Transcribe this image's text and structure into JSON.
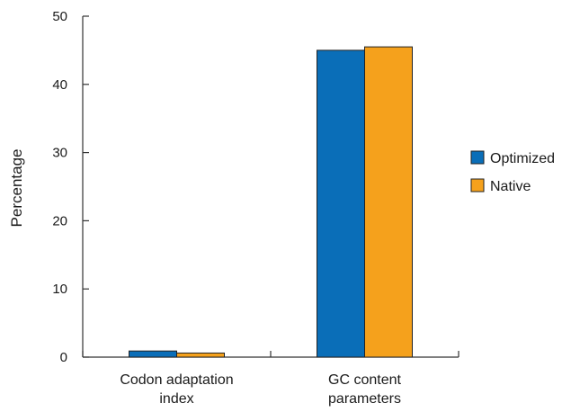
{
  "chart_data": {
    "type": "bar",
    "title": "",
    "xlabel": "",
    "ylabel": "Percentage",
    "ylim": [
      0,
      50
    ],
    "yticks": [
      0,
      10,
      20,
      30,
      40,
      50
    ],
    "grid": false,
    "legend_position": "right",
    "categories": [
      [
        "Codon adaptation",
        "index"
      ],
      [
        "GC content",
        "parameters"
      ]
    ],
    "series": [
      {
        "name": "Optimized",
        "color": "#0a6eb8",
        "values": [
          0.9,
          45.0
        ]
      },
      {
        "name": "Native",
        "color": "#f5a11c",
        "values": [
          0.6,
          45.5
        ]
      }
    ]
  }
}
